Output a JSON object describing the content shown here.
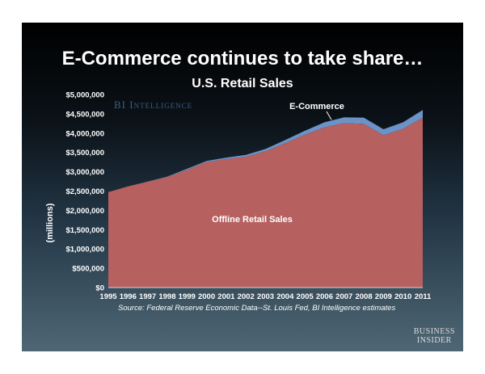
{
  "headline": "E-Commerce continues to take share…",
  "branding": {
    "watermark": "BI Intelligence",
    "footer_line1": "BUSINESS",
    "footer_line2": "INSIDER"
  },
  "source": "Source: Federal Reserve Economic Data--St. Louis Fed, BI Intelligence estimates",
  "colors": {
    "offline": "#b66060",
    "ecommerce": "#6b93c8"
  },
  "chart_data": {
    "type": "area",
    "stacked": true,
    "title": "U.S. Retail Sales",
    "xlabel": "",
    "ylabel": "(millions)",
    "x": [
      "1995",
      "1996",
      "1997",
      "1998",
      "1999",
      "2000",
      "2001",
      "2002",
      "2003",
      "2004",
      "2005",
      "2006",
      "2007",
      "2008",
      "2009",
      "2010",
      "2011"
    ],
    "ylim": [
      0,
      5000000
    ],
    "yticks": [
      "$0",
      "$500,000",
      "$1,000,000",
      "$1,500,000",
      "$2,000,000",
      "$2,500,000",
      "$3,000,000",
      "$3,500,000",
      "$4,000,000",
      "$4,500,000",
      "$5,000,000"
    ],
    "series": [
      {
        "name": "Offline Retail Sales",
        "values": [
          2470000,
          2620000,
          2740000,
          2860000,
          3050000,
          3250000,
          3330000,
          3390000,
          3530000,
          3740000,
          3960000,
          4150000,
          4260000,
          4240000,
          3950000,
          4110000,
          4400000
        ]
      },
      {
        "name": "E-Commerce",
        "values": [
          0,
          0,
          5000,
          15000,
          25000,
          30000,
          35000,
          45000,
          60000,
          80000,
          100000,
          130000,
          150000,
          160000,
          150000,
          170000,
          200000
        ]
      }
    ],
    "grid": false,
    "legend": "inline labels"
  }
}
